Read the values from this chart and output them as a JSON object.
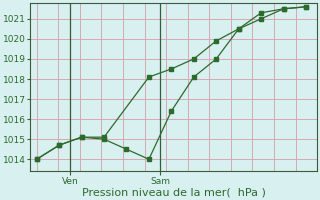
{
  "xlabel": "Pression niveau de la mer(  hPa )",
  "background_color": "#d8f0f0",
  "grid_color": "#d4a8b4",
  "line_color": "#2d6a2d",
  "separator_color": "#3a5a3a",
  "line1_x": [
    0,
    1,
    2,
    3,
    5,
    6,
    7,
    8,
    9,
    10,
    11,
    12
  ],
  "line1_y": [
    1014.0,
    1014.7,
    1015.1,
    1015.1,
    1018.1,
    1018.5,
    1019.0,
    1019.9,
    1020.5,
    1021.0,
    1021.5,
    1021.6
  ],
  "line2_x": [
    0,
    1,
    2,
    3,
    4,
    5,
    6,
    7,
    8,
    9,
    10,
    11,
    12
  ],
  "line2_y": [
    1014.0,
    1014.7,
    1015.1,
    1015.0,
    1014.5,
    1014.0,
    1016.4,
    1018.1,
    1019.0,
    1020.5,
    1021.3,
    1021.5,
    1021.6
  ],
  "ven_x": 1.5,
  "sam_x": 5.5,
  "ylim": [
    1013.4,
    1021.8
  ],
  "yticks": [
    1014,
    1015,
    1016,
    1017,
    1018,
    1019,
    1020,
    1021
  ],
  "xlim": [
    -0.3,
    12.5
  ],
  "xlabel_fontsize": 8,
  "tick_fontsize": 6.5,
  "marker_size": 2.5
}
